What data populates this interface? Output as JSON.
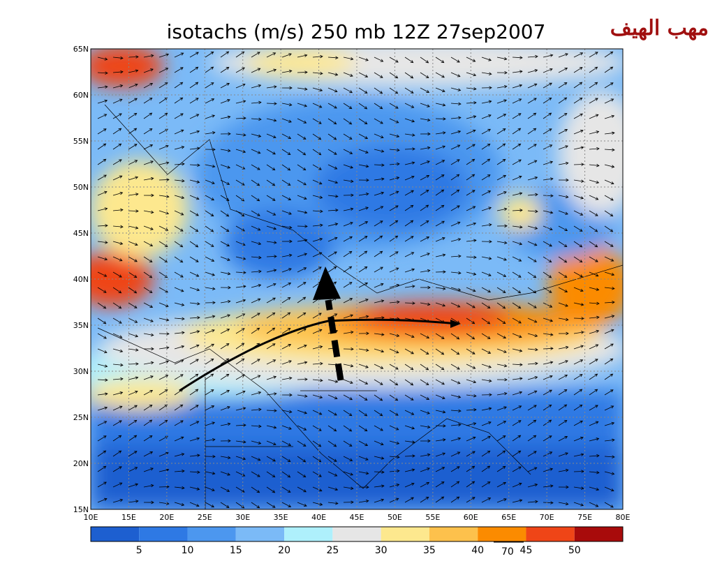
{
  "header": {
    "title": "isotachs (m/s) 250 mb 12Z 27sep2007",
    "brand": "مهب الهيف"
  },
  "map": {
    "lat_labels": [
      "65N",
      "60N",
      "55N",
      "50N",
      "45N",
      "40N",
      "35N",
      "30N",
      "25N",
      "20N",
      "15N"
    ],
    "lon_labels": [
      "10E",
      "15E",
      "20E",
      "25E",
      "30E",
      "35E",
      "40E",
      "45E",
      "50E",
      "55E",
      "60E",
      "65E",
      "70E",
      "75E",
      "80E"
    ]
  },
  "colorbar": {
    "labels": [
      "5",
      "10",
      "15",
      "20",
      "25",
      "30",
      "35",
      "40",
      "45",
      "50"
    ],
    "colors": [
      "#1d5fd0",
      "#2e79e4",
      "#4c97ef",
      "#7bbaf7",
      "#aef0fc",
      "#e6e6e6",
      "#fde88e",
      "#fdc14c",
      "#fb8b00",
      "#ef4517",
      "#a80b0b"
    ]
  },
  "vector_reference": "70"
}
